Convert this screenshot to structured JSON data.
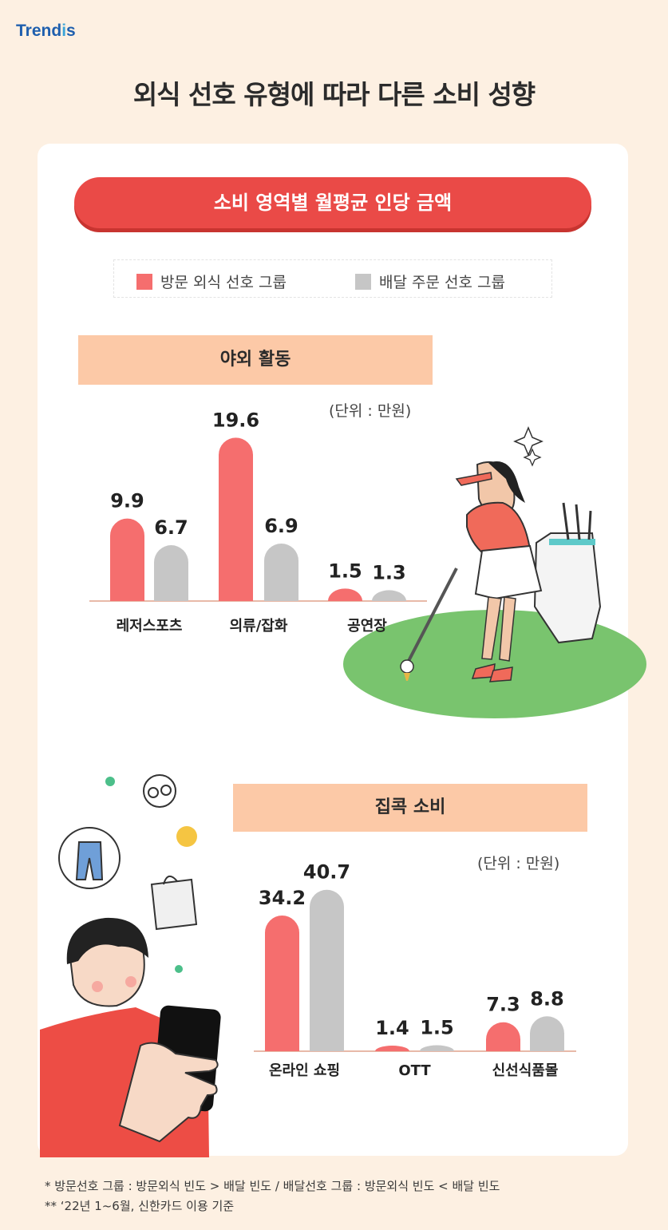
{
  "brand": {
    "prefix": "Trend",
    "dot": "i",
    "suffix": "s"
  },
  "title": "외식 선호 유형에 따라 다른 소비 성향",
  "subtitle": "소비 영역별 월평균 인당 금액",
  "legend": [
    {
      "label": "방문 외식 선호 그룹",
      "color": "#f56e6e"
    },
    {
      "label": "배달 주문 선호 그룹",
      "color": "#c6c6c6"
    }
  ],
  "colors": {
    "accent": "#ea4a47",
    "visit": "#f56e6e",
    "delivery": "#c6c6c6",
    "section_header": "#fcc9a7",
    "background": "#fdf0e2"
  },
  "chart_data": [
    {
      "type": "bar",
      "title": "야외 활동",
      "unit": "(단위 : 만원)",
      "categories": [
        "레저스포츠",
        "의류/잡화",
        "공연장"
      ],
      "series": [
        {
          "name": "방문 외식 선호 그룹",
          "values": [
            9.9,
            19.6,
            1.5
          ],
          "labels": [
            "9.9",
            "19.6",
            "1.5"
          ]
        },
        {
          "name": "배달 주문 선호 그룹",
          "values": [
            6.7,
            6.9,
            1.3
          ],
          "labels": [
            "6.7",
            "6.9",
            "1.3"
          ]
        }
      ]
    },
    {
      "type": "bar",
      "title": "집콕 소비",
      "unit": "(단위 : 만원)",
      "categories": [
        "온라인 쇼핑",
        "OTT",
        "신선식품몰"
      ],
      "series": [
        {
          "name": "방문 외식 선호 그룹",
          "values": [
            34.2,
            1.4,
            7.3
          ],
          "labels": [
            "34.2",
            "1.4",
            "7.3"
          ]
        },
        {
          "name": "배달 주문 선호 그룹",
          "values": [
            40.7,
            1.5,
            8.8
          ],
          "labels": [
            "40.7",
            "1.5",
            "8.8"
          ]
        }
      ]
    }
  ],
  "illustrations": [
    "golfer-illustration",
    "smartphone-user-illustration",
    "jeans-icon",
    "glasses-icon",
    "shopping-bag-icon"
  ],
  "footnotes": [
    "* 방문선호 그룹 : 방문외식 빈도 > 배달 빈도 / 배달선호 그룹 : 방문외식 빈도 < 배달 빈도",
    "** ‘22년 1~6월, 신한카드 이용 기준"
  ]
}
